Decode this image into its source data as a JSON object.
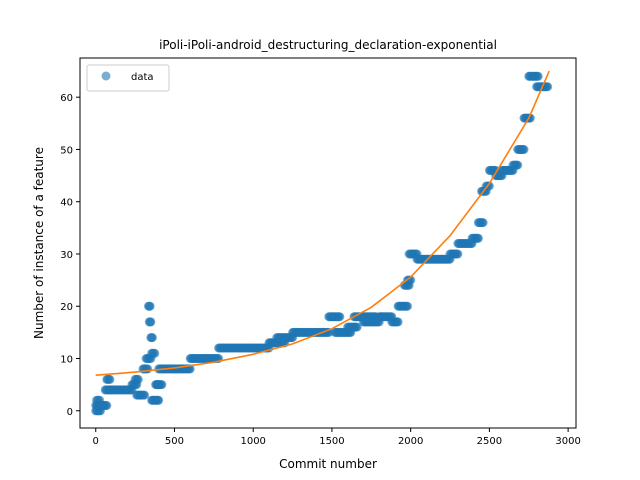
{
  "chart_data": {
    "type": "scatter",
    "title": "iPoli-iPoli-android_destructuring_declaration-exponential",
    "xlabel": "Commit number",
    "ylabel": "Number of instance of a feature",
    "xlim": [
      -100,
      3050
    ],
    "ylim": [
      -3.3,
      67.5
    ],
    "xticks": [
      0,
      500,
      1000,
      1500,
      2000,
      2500,
      3000
    ],
    "yticks": [
      0,
      10,
      20,
      30,
      40,
      50,
      60
    ],
    "grid": false,
    "legend": {
      "placement": "top-left",
      "entries": [
        "data"
      ]
    },
    "colors": {
      "data": "#1f77b4",
      "fit": "#ff7f0e"
    },
    "series": [
      {
        "name": "data",
        "kind": "scatter",
        "segments": [
          [
            0,
            45,
            1
          ],
          [
            0,
            30,
            0
          ],
          [
            5,
            25,
            2
          ],
          [
            30,
            70,
            1
          ],
          [
            60,
            90,
            4
          ],
          [
            70,
            90,
            6
          ],
          [
            90,
            230,
            4
          ],
          [
            230,
            260,
            5
          ],
          [
            250,
            270,
            6
          ],
          [
            260,
            310,
            3
          ],
          [
            300,
            330,
            8
          ],
          [
            320,
            350,
            10
          ],
          [
            335,
            345,
            20
          ],
          [
            340,
            350,
            17
          ],
          [
            350,
            360,
            14
          ],
          [
            355,
            375,
            11
          ],
          [
            355,
            400,
            2
          ],
          [
            390,
            400,
            5
          ],
          [
            380,
            420,
            5
          ],
          [
            400,
            600,
            8
          ],
          [
            600,
            780,
            10
          ],
          [
            780,
            1100,
            12
          ],
          [
            1100,
            1200,
            13
          ],
          [
            1150,
            1250,
            14
          ],
          [
            1250,
            1480,
            15
          ],
          [
            1480,
            1550,
            18
          ],
          [
            1520,
            1620,
            15
          ],
          [
            1600,
            1660,
            16
          ],
          [
            1640,
            1780,
            18
          ],
          [
            1700,
            1800,
            17
          ],
          [
            1800,
            1880,
            18
          ],
          [
            1880,
            1920,
            17
          ],
          [
            1920,
            1980,
            20
          ],
          [
            1960,
            1990,
            24
          ],
          [
            1980,
            2000,
            25
          ],
          [
            1990,
            2040,
            30
          ],
          [
            2040,
            2250,
            29
          ],
          [
            2250,
            2300,
            30
          ],
          [
            2300,
            2390,
            32
          ],
          [
            2390,
            2430,
            33
          ],
          [
            2430,
            2460,
            36
          ],
          [
            2450,
            2480,
            42
          ],
          [
            2480,
            2500,
            43
          ],
          [
            2500,
            2540,
            46
          ],
          [
            2540,
            2580,
            45
          ],
          [
            2580,
            2650,
            46
          ],
          [
            2650,
            2680,
            47
          ],
          [
            2680,
            2720,
            50
          ],
          [
            2720,
            2760,
            56
          ],
          [
            2750,
            2810,
            64
          ],
          [
            2800,
            2870,
            62
          ]
        ]
      },
      {
        "name": "",
        "kind": "line",
        "model": "exponential",
        "x": [
          0,
          250,
          500,
          750,
          1000,
          1250,
          1500,
          1750,
          2000,
          2250,
          2500,
          2750,
          2880
        ],
        "y": [
          6.8,
          7.4,
          8.2,
          9.3,
          10.8,
          12.8,
          15.7,
          19.8,
          25.6,
          33.5,
          43.5,
          56.0,
          65.0
        ]
      }
    ]
  }
}
